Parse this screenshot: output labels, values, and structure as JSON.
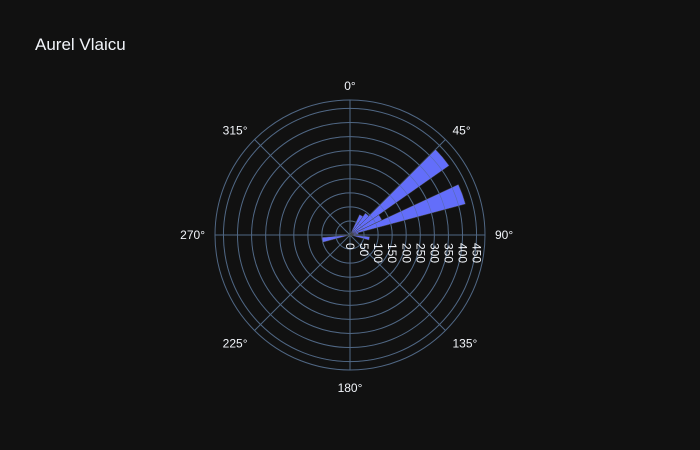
{
  "chart_data": {
    "type": "bar",
    "subtype": "polar-barpolar",
    "title": "Aurel Vlaicu",
    "angular_axis": {
      "direction": "clockwise",
      "rotation_zero": "top",
      "tick_values": [
        0,
        45,
        90,
        135,
        180,
        225,
        270,
        315
      ],
      "tick_labels": [
        "0°",
        "45°",
        "90°",
        "135°",
        "180°",
        "225°",
        "270°",
        "315°"
      ]
    },
    "radial_axis": {
      "range": [
        0,
        480
      ],
      "tick_values": [
        0,
        50,
        100,
        150,
        200,
        250,
        300,
        350,
        400,
        450
      ],
      "tick_labels": [
        "0",
        "50",
        "100",
        "150",
        "200",
        "250",
        "300",
        "350",
        "400",
        "450"
      ],
      "angle": 90
    },
    "bar_width_deg": 10,
    "bars": [
      {
        "theta": 30,
        "r": 80
      },
      {
        "theta": 40,
        "r": 95
      },
      {
        "theta": 50,
        "r": 430
      },
      {
        "theta": 60,
        "r": 125
      },
      {
        "theta": 70,
        "r": 425
      },
      {
        "theta": 80,
        "r": 30
      },
      {
        "theta": 100,
        "r": 70
      },
      {
        "theta": 260,
        "r": 100
      }
    ],
    "grid": true,
    "colors": {
      "background": "#111111",
      "bar": "#636efa",
      "grid": "#506784",
      "text": "#f2f5fa"
    }
  }
}
